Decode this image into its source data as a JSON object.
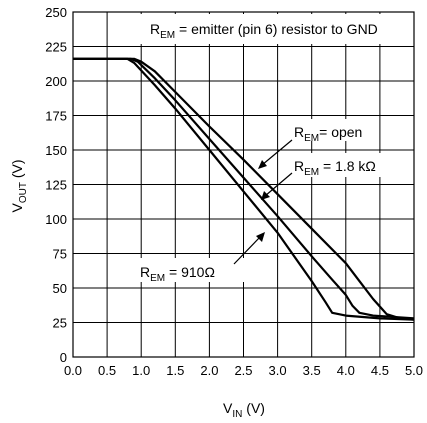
{
  "chart_data": {
    "type": "line",
    "x_axis": {
      "range": [
        0,
        5
      ],
      "ticks": [
        "0.0",
        "0.5",
        "1.0",
        "1.5",
        "2.0",
        "2.5",
        "3.0",
        "3.5",
        "4.0",
        "4.5",
        "5.0"
      ],
      "label": {
        "main": "V",
        "sub": "IN",
        "unit": " (V)"
      }
    },
    "y_axis": {
      "range": [
        0,
        250
      ],
      "ticks": [
        "0",
        "25",
        "50",
        "75",
        "100",
        "125",
        "150",
        "175",
        "200",
        "225",
        "250"
      ],
      "label": {
        "main": "V",
        "sub": "OUT",
        "unit": " (V)"
      }
    },
    "grid": true,
    "note": {
      "main": "R",
      "sub": "EM",
      "rest": " = emitter (pin 6) resistor to GND"
    },
    "series": [
      {
        "label": {
          "main": "R",
          "sub": "EM",
          "rest": "= open"
        },
        "points": [
          [
            0.0,
            216
          ],
          [
            0.9,
            216
          ],
          [
            1.0,
            214
          ],
          [
            1.2,
            207
          ],
          [
            1.5,
            192
          ],
          [
            2.0,
            167
          ],
          [
            2.5,
            143
          ],
          [
            3.0,
            118
          ],
          [
            3.5,
            93
          ],
          [
            4.0,
            68
          ],
          [
            4.2,
            55
          ],
          [
            4.4,
            42
          ],
          [
            4.6,
            31
          ],
          [
            4.8,
            28
          ],
          [
            5.0,
            27
          ]
        ]
      },
      {
        "label": {
          "main": "R",
          "sub": "EM",
          "rest": " = 1.8 kΩ"
        },
        "points": [
          [
            0.0,
            216
          ],
          [
            0.85,
            216
          ],
          [
            0.95,
            214
          ],
          [
            1.2,
            202
          ],
          [
            1.5,
            186
          ],
          [
            2.0,
            158
          ],
          [
            2.5,
            130
          ],
          [
            3.0,
            102
          ],
          [
            3.5,
            73
          ],
          [
            3.8,
            56
          ],
          [
            4.0,
            45
          ],
          [
            4.1,
            37
          ],
          [
            4.2,
            32
          ],
          [
            4.4,
            30
          ],
          [
            4.7,
            29
          ],
          [
            5.0,
            28
          ]
        ]
      },
      {
        "label": {
          "main": "R",
          "sub": "EM",
          "rest": " = 910Ω"
        },
        "points": [
          [
            0.0,
            216
          ],
          [
            0.8,
            216
          ],
          [
            0.9,
            213
          ],
          [
            1.2,
            197
          ],
          [
            1.5,
            180
          ],
          [
            2.0,
            150
          ],
          [
            2.5,
            120
          ],
          [
            3.0,
            90
          ],
          [
            3.5,
            55
          ],
          [
            3.7,
            40
          ],
          [
            3.8,
            32
          ],
          [
            4.0,
            30
          ],
          [
            4.5,
            28
          ],
          [
            5.0,
            27
          ]
        ]
      }
    ]
  }
}
